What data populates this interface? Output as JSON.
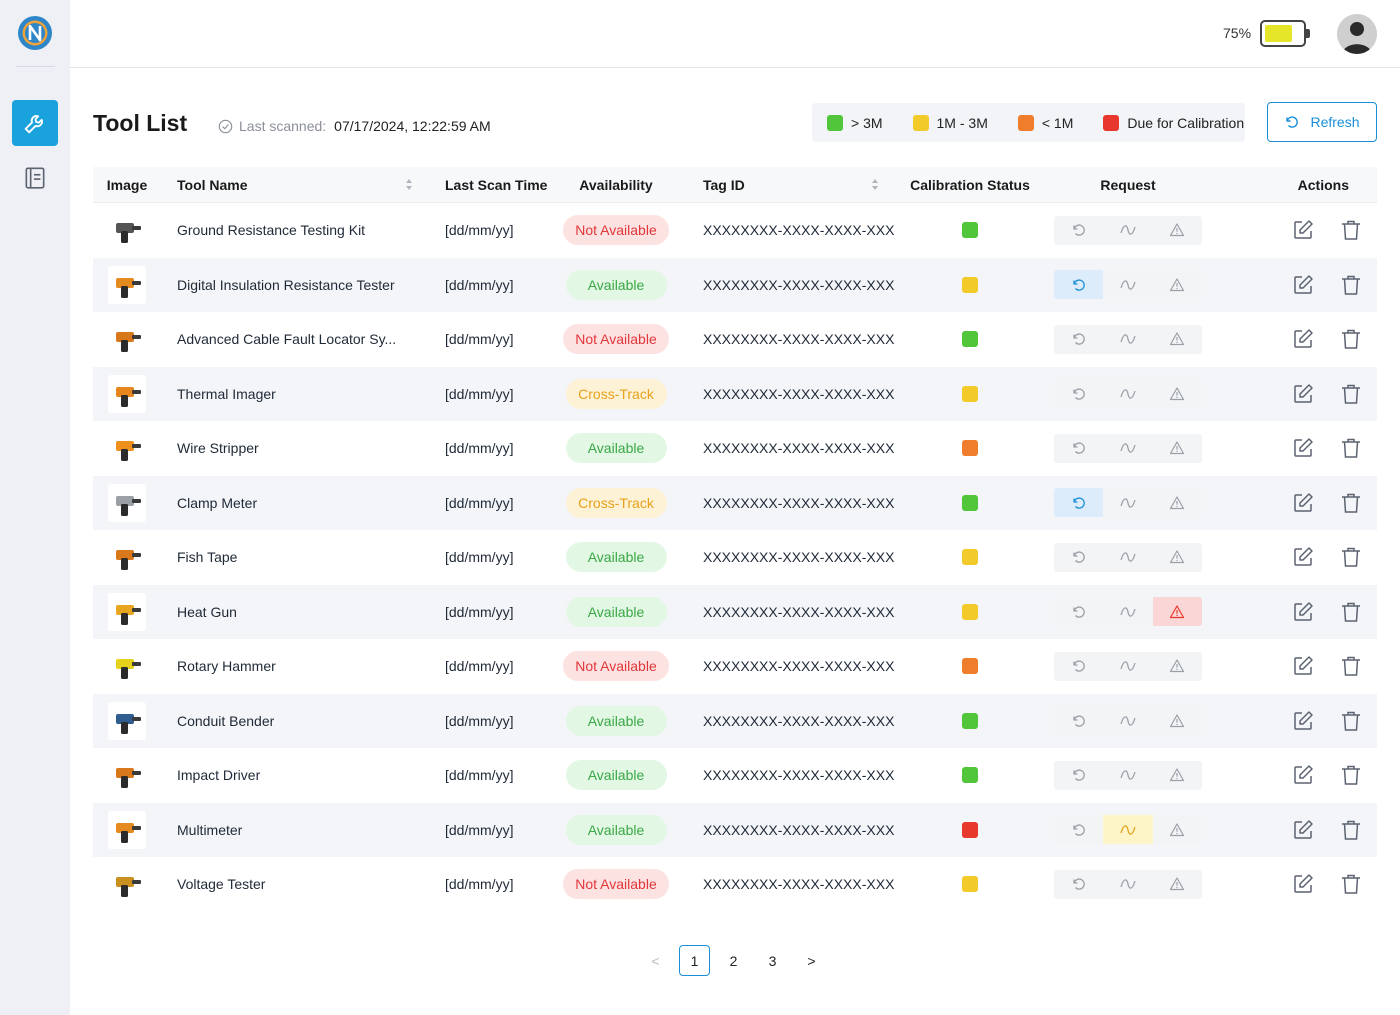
{
  "app": {
    "logo_icon": "app-logo-icon"
  },
  "sidebar": {
    "items": [
      {
        "icon": "wrench-icon",
        "active": true
      },
      {
        "icon": "list-icon",
        "active": false
      }
    ]
  },
  "header": {
    "battery_percent": "75%",
    "battery_level": 0.75,
    "battery_color": "#e5e62a"
  },
  "page": {
    "title": "Tool List",
    "last_scanned_label": "Last scanned:",
    "last_scanned_value": "07/17/2024, 12:22:59 AM"
  },
  "legend": [
    {
      "label": "> 3M",
      "color": "#52c63a"
    },
    {
      "label": "1M - 3M",
      "color": "#f2cb2b"
    },
    {
      "label": "< 1M",
      "color": "#f07d2c"
    },
    {
      "label": "Due for Calibration",
      "color": "#e8372c"
    }
  ],
  "refresh_label": "Refresh",
  "table": {
    "columns": {
      "image": "Image",
      "tool_name": "Tool Name",
      "last_scan_time": "Last Scan Time",
      "availability": "Availability",
      "tag_id": "Tag ID",
      "calibration_status": "Calibration Status",
      "request": "Request",
      "actions": "Actions"
    },
    "rows": [
      {
        "name": "Ground Resistance Testing Kit",
        "time": "[dd/mm/yy]",
        "availability": "Not Available",
        "tag": "XXXXXXXX-XXXX-XXXX-XXXX...",
        "cal": "#52c63a",
        "req_hl": "",
        "img_color": "#555555"
      },
      {
        "name": "Digital Insulation Resistance Tester",
        "time": "[dd/mm/yy]",
        "availability": "Available",
        "tag": "XXXXXXXX-XXXX-XXXX-XXXX...",
        "cal": "#f2cb2b",
        "req_hl": "return",
        "img_color": "#e48a1f"
      },
      {
        "name": "Advanced Cable Fault Locator Sy...",
        "time": "[dd/mm/yy]",
        "availability": "Not Available",
        "tag": "XXXXXXXX-XXXX-XXXX-XXXX...",
        "cal": "#52c63a",
        "req_hl": "",
        "img_color": "#d9771b"
      },
      {
        "name": "Thermal Imager",
        "time": "[dd/mm/yy]",
        "availability": "Cross-Track",
        "tag": "XXXXXXXX-XXXX-XXXX-XXXX...",
        "cal": "#f2cb2b",
        "req_hl": "",
        "img_color": "#e8861e"
      },
      {
        "name": "Wire Stripper",
        "time": "[dd/mm/yy]",
        "availability": "Available",
        "tag": "XXXXXXXX-XXXX-XXXX-XXXX...",
        "cal": "#f07d2c",
        "req_hl": "",
        "img_color": "#ef8f1c"
      },
      {
        "name": "Clamp Meter",
        "time": "[dd/mm/yy]",
        "availability": "Cross-Track",
        "tag": "XXXXXXXX-XXXX-XXXX-XXXX...",
        "cal": "#52c63a",
        "req_hl": "return",
        "img_color": "#9aa0a6"
      },
      {
        "name": "Fish Tape",
        "time": "[dd/mm/yy]",
        "availability": "Available",
        "tag": "XXXXXXXX-XXXX-XXXX-XXXX...",
        "cal": "#f2cb2b",
        "req_hl": "",
        "img_color": "#d9771b"
      },
      {
        "name": "Heat Gun",
        "time": "[dd/mm/yy]",
        "availability": "Available",
        "tag": "XXXXXXXX-XXXX-XXXX-XXXX...",
        "cal": "#f2cb2b",
        "req_hl": "report",
        "img_color": "#e8a51e"
      },
      {
        "name": "Rotary Hammer",
        "time": "[dd/mm/yy]",
        "availability": "Not Available",
        "tag": "XXXXXXXX-XXXX-XXXX-XXXX...",
        "cal": "#f07d2c",
        "req_hl": "",
        "img_color": "#e6d21a"
      },
      {
        "name": "Conduit Bender",
        "time": "[dd/mm/yy]",
        "availability": "Available",
        "tag": "XXXXXXXX-XXXX-XXXX-XXXX...",
        "cal": "#52c63a",
        "req_hl": "",
        "img_color": "#2f5d8f"
      },
      {
        "name": "Impact Driver",
        "time": "[dd/mm/yy]",
        "availability": "Available",
        "tag": "XXXXXXXX-XXXX-XXXX-XXXX...",
        "cal": "#52c63a",
        "req_hl": "",
        "img_color": "#d9771b"
      },
      {
        "name": "Multimeter",
        "time": "[dd/mm/yy]",
        "availability": "Available",
        "tag": "XXXXXXXX-XXXX-XXXX-XXXX...",
        "cal": "#e8372c",
        "req_hl": "track",
        "img_color": "#e48a1f"
      },
      {
        "name": "Voltage Tester",
        "time": "[dd/mm/yy]",
        "availability": "Not Available",
        "tag": "XXXXXXXX-XXXX-XXXX-XXXX...",
        "cal": "#f2cb2b",
        "req_hl": "",
        "img_color": "#c9901f"
      }
    ]
  },
  "pagination": {
    "prev": "<",
    "pages": [
      "1",
      "2",
      "3"
    ],
    "current": "1",
    "next": ">"
  }
}
